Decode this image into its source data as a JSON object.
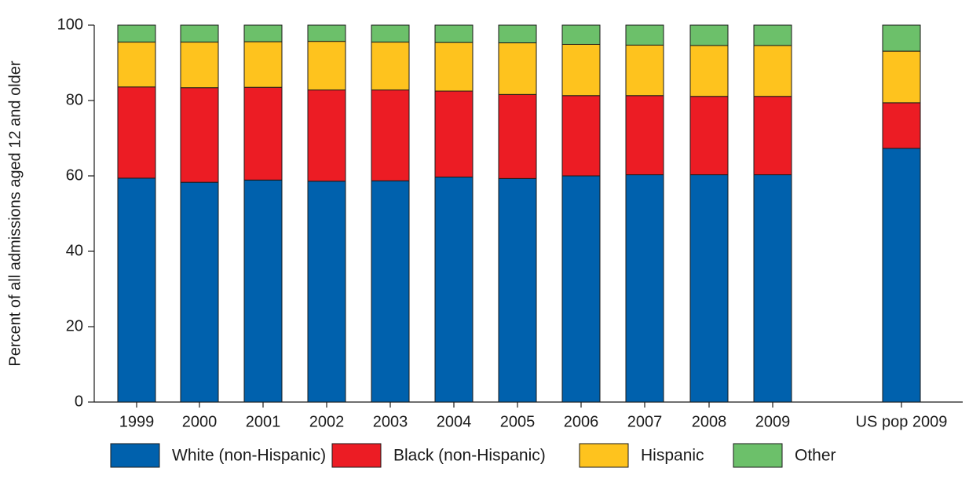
{
  "chart_data": {
    "type": "bar",
    "stacked": true,
    "title": "",
    "xlabel": "",
    "ylabel": "Percent of all admissions aged 12 and older",
    "ylim": [
      0,
      100
    ],
    "yticks": [
      0,
      20,
      40,
      60,
      80,
      100
    ],
    "grid": false,
    "legend_position": "bottom",
    "categories": [
      "1999",
      "2000",
      "2001",
      "2002",
      "2003",
      "2004",
      "2005",
      "2006",
      "2007",
      "2008",
      "2009",
      "US pop 2009"
    ],
    "series": [
      {
        "name": "White (non-Hispanic)",
        "color": "#0061ad",
        "values": [
          59.4,
          58.3,
          58.9,
          58.6,
          58.7,
          59.7,
          59.3,
          60.0,
          60.3,
          60.3,
          60.3,
          67.3
        ]
      },
      {
        "name": "Black (non-Hispanic)",
        "color": "#ec1c24",
        "values": [
          24.2,
          25.1,
          24.6,
          24.2,
          24.1,
          22.8,
          22.3,
          21.3,
          21.0,
          20.8,
          20.8,
          12.1
        ]
      },
      {
        "name": "Hispanic",
        "color": "#fec31e",
        "values": [
          11.9,
          12.1,
          12.1,
          12.9,
          12.7,
          12.9,
          13.7,
          13.6,
          13.4,
          13.5,
          13.5,
          13.7
        ]
      },
      {
        "name": "Other",
        "color": "#6cc06a",
        "values": [
          4.5,
          4.5,
          4.4,
          4.3,
          4.5,
          4.6,
          4.7,
          5.1,
          5.3,
          5.4,
          5.4,
          6.9
        ]
      }
    ]
  }
}
